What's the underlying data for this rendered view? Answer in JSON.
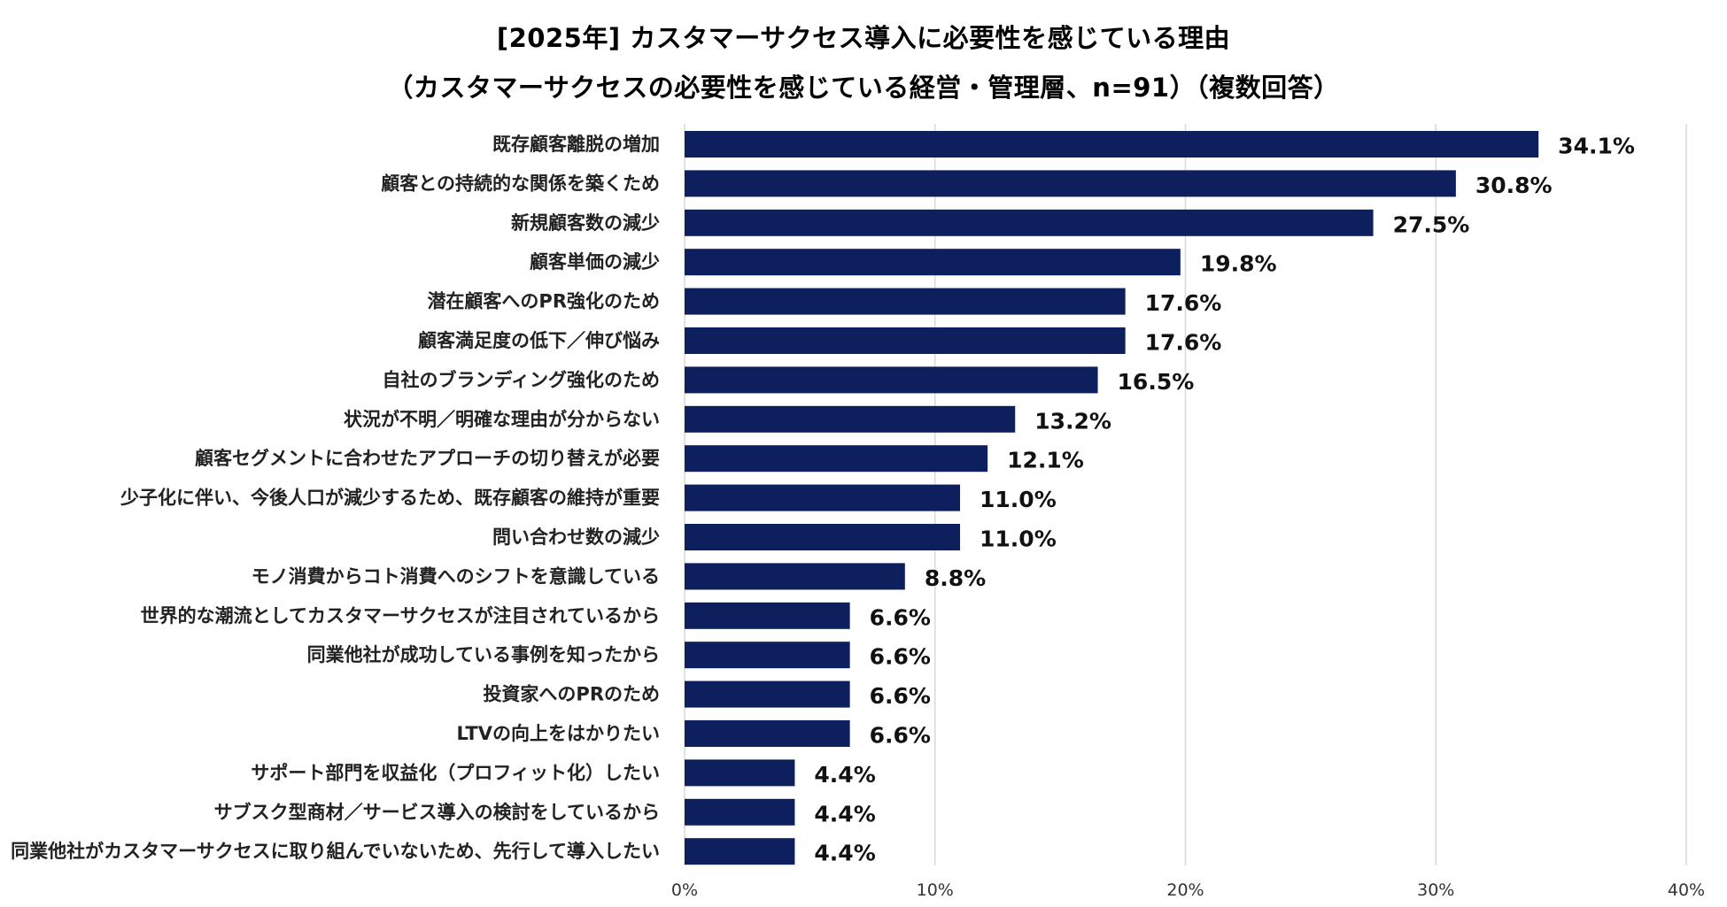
{
  "chart_data": {
    "type": "bar",
    "orientation": "horizontal",
    "title": "[2025年] カスタマーサクセス導入に必要性を感じている理由",
    "subtitle": "（カスタマーサクセスの必要性を感じている経営・管理層、n=91）（複数回答）",
    "xlabel": "",
    "ylabel": "",
    "xlim": [
      0,
      40
    ],
    "x_ticks": [
      0,
      10,
      20,
      30,
      40
    ],
    "x_tick_labels": [
      "0%",
      "10%",
      "20%",
      "30%",
      "40%"
    ],
    "grid": "vertical",
    "legend": "none",
    "bar_color": "#0d1f5c",
    "categories": [
      "既存顧客離脱の増加",
      "顧客との持続的な関係を築くため",
      "新規顧客数の減少",
      "顧客単価の減少",
      "潜在顧客へのPR強化のため",
      "顧客満足度の低下／伸び悩み",
      "自社のブランディング強化のため",
      "状況が不明／明確な理由が分からない",
      "顧客セグメントに合わせたアプローチの切り替えが必要",
      "少子化に伴い、今後人口が減少するため、既存顧客の維持が重要",
      "問い合わせ数の減少",
      "モノ消費からコト消費へのシフトを意識している",
      "世界的な潮流としてカスタマーサクセスが注目されているから",
      "同業他社が成功している事例を知ったから",
      "投資家へのPRのため",
      "LTVの向上をはかりたい",
      "サポート部門を収益化（プロフィット化）したい",
      "サブスク型商材／サービス導入の検討をしているから",
      "同業他社がカスタマーサクセスに取り組んでいないため、先行して導入したい"
    ],
    "values": [
      34.1,
      30.8,
      27.5,
      19.8,
      17.6,
      17.6,
      16.5,
      13.2,
      12.1,
      11.0,
      11.0,
      8.8,
      6.6,
      6.6,
      6.6,
      6.6,
      4.4,
      4.4,
      4.4
    ],
    "value_labels": [
      "34.1%",
      "30.8%",
      "27.5%",
      "19.8%",
      "17.6%",
      "17.6%",
      "16.5%",
      "13.2%",
      "12.1%",
      "11.0%",
      "11.0%",
      "8.8%",
      "6.6%",
      "6.6%",
      "6.6%",
      "6.6%",
      "4.4%",
      "4.4%",
      "4.4%"
    ]
  }
}
